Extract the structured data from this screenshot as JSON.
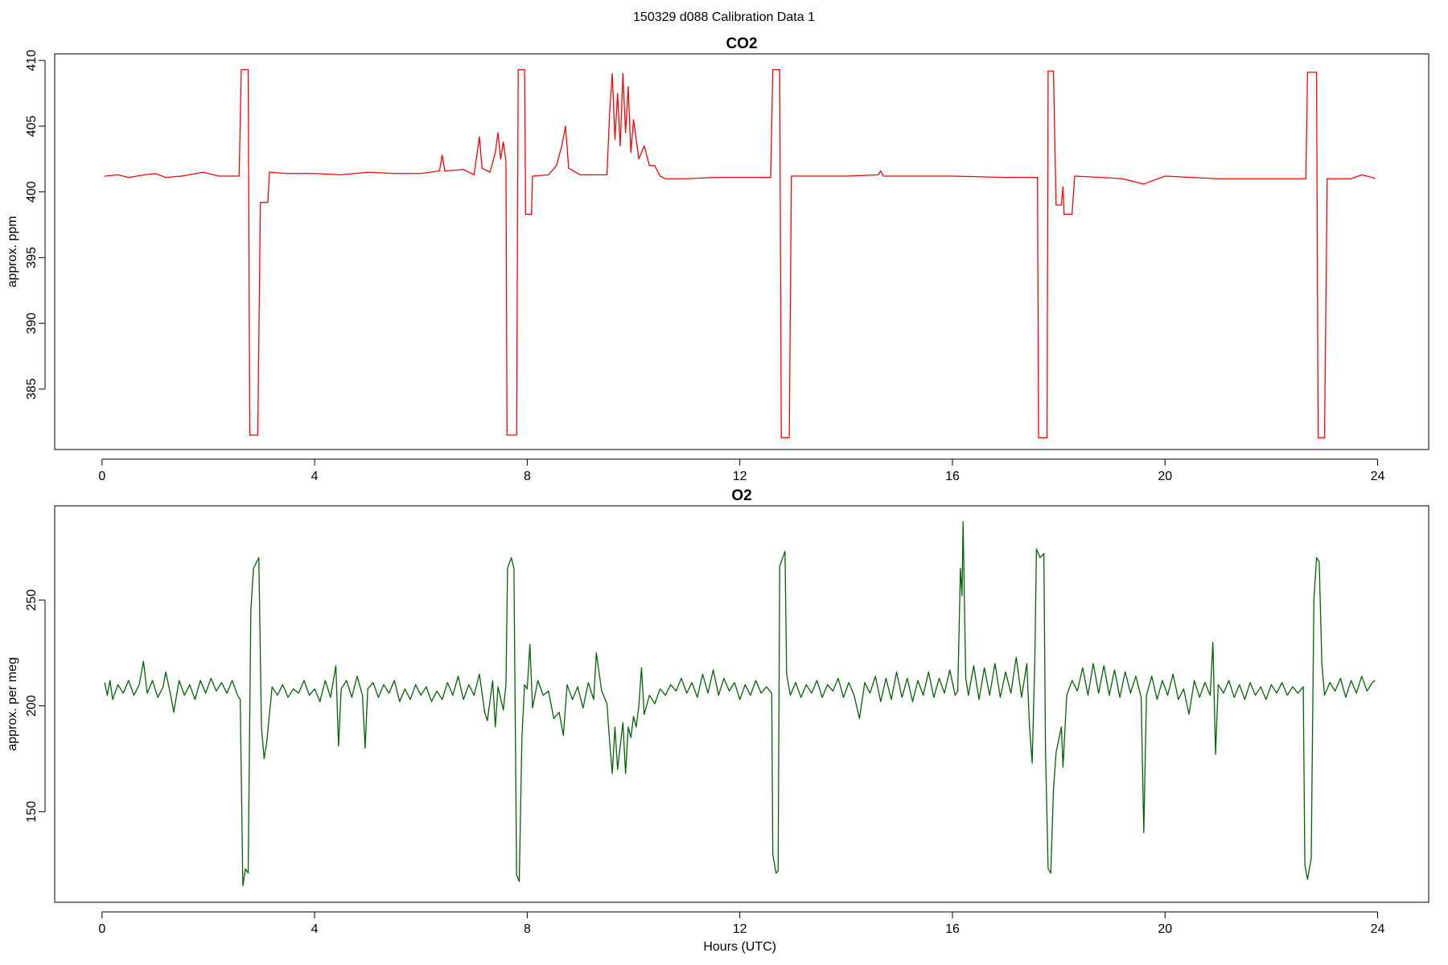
{
  "title": "150329   d088   Calibration Data 1",
  "chart_data": [
    {
      "type": "line",
      "title": "CO2",
      "ylabel": "approx. ppm",
      "color": "#ff0000",
      "xlim": [
        -0.89,
        24.96
      ],
      "ylim": [
        380.4,
        410.5
      ],
      "xticks": [
        0,
        4,
        8,
        12,
        16,
        20,
        24
      ],
      "yticks": [
        385,
        390,
        395,
        400,
        405,
        410
      ],
      "x": [
        0.05,
        0.3,
        0.5,
        0.8,
        1.0,
        1.2,
        1.5,
        1.9,
        2.2,
        2.58,
        2.62,
        2.75,
        2.78,
        2.93,
        2.98,
        3.12,
        3.15,
        3.5,
        4.0,
        4.5,
        5.0,
        5.5,
        6.0,
        6.35,
        6.4,
        6.45,
        6.8,
        7.0,
        7.1,
        7.15,
        7.3,
        7.4,
        7.45,
        7.5,
        7.55,
        7.6,
        7.62,
        7.8,
        7.83,
        7.95,
        7.97,
        8.08,
        8.1,
        8.4,
        8.55,
        8.65,
        8.72,
        8.78,
        9.0,
        9.5,
        9.55,
        9.6,
        9.65,
        9.7,
        9.75,
        9.8,
        9.85,
        9.9,
        9.95,
        10.0,
        10.1,
        10.2,
        10.3,
        10.4,
        10.5,
        10.6,
        11.0,
        11.5,
        12.0,
        12.58,
        12.62,
        12.75,
        12.78,
        12.93,
        12.97,
        13.5,
        14.0,
        14.6,
        14.65,
        14.7,
        15.5,
        16.0,
        17.0,
        17.6,
        17.62,
        17.78,
        17.8,
        17.9,
        17.95,
        18.05,
        18.08,
        18.1,
        18.25,
        18.3,
        18.8,
        19.2,
        19.6,
        20.0,
        20.5,
        21.0,
        22.0,
        22.65,
        22.68,
        22.85,
        22.88,
        23.0,
        23.05,
        23.5,
        23.7,
        23.9,
        23.95
      ],
      "values": [
        401.2,
        401.3,
        401.1,
        401.3,
        401.4,
        401.1,
        401.2,
        401.5,
        401.2,
        401.2,
        409.3,
        409.3,
        381.5,
        381.5,
        399.2,
        399.2,
        401.5,
        401.4,
        401.4,
        401.3,
        401.5,
        401.4,
        401.4,
        401.6,
        402.8,
        401.6,
        401.7,
        401.3,
        404.2,
        401.8,
        401.5,
        403.0,
        404.5,
        402.5,
        403.8,
        402.3,
        381.5,
        381.5,
        409.3,
        409.3,
        398.3,
        398.3,
        401.2,
        401.3,
        402.0,
        403.5,
        405.0,
        401.8,
        401.3,
        401.3,
        406.0,
        409.0,
        404.0,
        407.5,
        403.5,
        409.0,
        404.5,
        408.0,
        403.0,
        405.5,
        402.5,
        403.5,
        402.0,
        402.0,
        401.2,
        401.0,
        401.0,
        401.1,
        401.1,
        401.1,
        409.3,
        409.3,
        381.3,
        381.3,
        401.2,
        401.2,
        401.2,
        401.3,
        401.6,
        401.2,
        401.2,
        401.2,
        401.1,
        401.1,
        381.3,
        381.3,
        409.2,
        409.2,
        399.0,
        399.0,
        400.4,
        398.3,
        398.3,
        401.2,
        401.1,
        401.0,
        400.6,
        401.2,
        401.1,
        401.0,
        401.0,
        401.0,
        409.1,
        409.1,
        381.3,
        381.3,
        401.0,
        401.0,
        401.3,
        401.1,
        401.0
      ]
    },
    {
      "type": "line",
      "title": "O2",
      "ylabel": "approx. per meg",
      "xlabel": "Hours (UTC)",
      "color": "#006400",
      "xlim": [
        -0.89,
        24.96
      ],
      "ylim": [
        107.2,
        294.5
      ],
      "xticks": [
        0,
        4,
        8,
        12,
        16,
        20,
        24
      ],
      "yticks": [
        150,
        200,
        250
      ],
      "x": [
        0.05,
        0.1,
        0.15,
        0.2,
        0.3,
        0.4,
        0.5,
        0.6,
        0.7,
        0.78,
        0.85,
        0.95,
        1.05,
        1.15,
        1.2,
        1.3,
        1.35,
        1.45,
        1.55,
        1.65,
        1.75,
        1.85,
        1.95,
        2.05,
        2.15,
        2.25,
        2.35,
        2.45,
        2.55,
        2.6,
        2.65,
        2.7,
        2.75,
        2.8,
        2.85,
        2.95,
        3.0,
        3.05,
        3.1,
        3.2,
        3.3,
        3.4,
        3.5,
        3.6,
        3.7,
        3.8,
        3.9,
        4.0,
        4.1,
        4.2,
        4.3,
        4.4,
        4.45,
        4.5,
        4.6,
        4.7,
        4.8,
        4.9,
        4.95,
        5.0,
        5.1,
        5.2,
        5.3,
        5.4,
        5.5,
        5.6,
        5.7,
        5.8,
        5.9,
        6.0,
        6.1,
        6.2,
        6.3,
        6.4,
        6.5,
        6.6,
        6.7,
        6.8,
        6.9,
        7.0,
        7.1,
        7.2,
        7.25,
        7.35,
        7.4,
        7.45,
        7.55,
        7.6,
        7.63,
        7.7,
        7.75,
        7.8,
        7.85,
        7.9,
        7.95,
        8.0,
        8.05,
        8.1,
        8.2,
        8.3,
        8.4,
        8.5,
        8.6,
        8.68,
        8.75,
        8.85,
        8.95,
        9.05,
        9.15,
        9.25,
        9.3,
        9.4,
        9.5,
        9.55,
        9.6,
        9.65,
        9.7,
        9.8,
        9.85,
        9.9,
        9.95,
        10.0,
        10.05,
        10.1,
        10.15,
        10.2,
        10.3,
        10.4,
        10.5,
        10.6,
        10.7,
        10.8,
        10.9,
        11.0,
        11.1,
        11.2,
        11.3,
        11.4,
        11.5,
        11.6,
        11.7,
        11.8,
        11.9,
        12.0,
        12.1,
        12.2,
        12.3,
        12.4,
        12.5,
        12.6,
        12.62,
        12.68,
        12.72,
        12.75,
        12.85,
        12.88,
        12.95,
        13.05,
        13.15,
        13.25,
        13.35,
        13.45,
        13.55,
        13.65,
        13.75,
        13.85,
        13.95,
        14.05,
        14.15,
        14.25,
        14.35,
        14.45,
        14.55,
        14.65,
        14.75,
        14.85,
        14.95,
        15.05,
        15.15,
        15.25,
        15.35,
        15.45,
        15.55,
        15.65,
        15.75,
        15.85,
        15.95,
        16.05,
        16.1,
        16.15,
        16.18,
        16.2,
        16.25,
        16.3,
        16.4,
        16.5,
        16.6,
        16.7,
        16.8,
        16.9,
        17.0,
        17.1,
        17.2,
        17.3,
        17.4,
        17.45,
        17.5,
        17.55,
        17.58,
        17.65,
        17.72,
        17.75,
        17.8,
        17.85,
        17.9,
        17.95,
        18.05,
        18.08,
        18.15,
        18.25,
        18.35,
        18.45,
        18.55,
        18.65,
        18.75,
        18.85,
        18.95,
        19.05,
        19.15,
        19.25,
        19.35,
        19.45,
        19.55,
        19.6,
        19.65,
        19.75,
        19.85,
        19.95,
        20.05,
        20.15,
        20.25,
        20.35,
        20.45,
        20.55,
        20.65,
        20.75,
        20.85,
        20.9,
        20.95,
        21.0,
        21.1,
        21.2,
        21.3,
        21.4,
        21.5,
        21.6,
        21.7,
        21.8,
        21.9,
        22.0,
        22.1,
        22.2,
        22.3,
        22.4,
        22.5,
        22.6,
        22.63,
        22.68,
        22.75,
        22.8,
        22.85,
        22.9,
        22.95,
        23.0,
        23.1,
        23.2,
        23.3,
        23.4,
        23.5,
        23.6,
        23.7,
        23.8,
        23.9,
        23.95
      ],
      "values": [
        211,
        205,
        212,
        203,
        210,
        206,
        212,
        205,
        210,
        221,
        206,
        212,
        204,
        209,
        216,
        204,
        197,
        212,
        205,
        210,
        203,
        212,
        206,
        213,
        207,
        211,
        206,
        212,
        205,
        203,
        115,
        123,
        121,
        245,
        265,
        270,
        190,
        175,
        183,
        209,
        205,
        210,
        204,
        208,
        206,
        212,
        205,
        208,
        202,
        212,
        204,
        219,
        181,
        208,
        212,
        204,
        214,
        205,
        180,
        208,
        211,
        204,
        210,
        206,
        212,
        202,
        208,
        203,
        210,
        205,
        209,
        202,
        207,
        203,
        211,
        205,
        214,
        203,
        210,
        205,
        215,
        197,
        193,
        212,
        190,
        209,
        198,
        210,
        265,
        270,
        265,
        120,
        117,
        185,
        210,
        208,
        229,
        199,
        212,
        205,
        207,
        194,
        197,
        186,
        210,
        203,
        209,
        199,
        211,
        203,
        225,
        207,
        201,
        183,
        168,
        190,
        170,
        192,
        168,
        190,
        185,
        195,
        190,
        200,
        218,
        196,
        205,
        201,
        208,
        205,
        210,
        207,
        213,
        206,
        211,
        204,
        215,
        206,
        217,
        205,
        213,
        207,
        211,
        203,
        210,
        205,
        212,
        206,
        209,
        206,
        130,
        121,
        122,
        266,
        273,
        215,
        205,
        211,
        204,
        210,
        206,
        212,
        204,
        210,
        207,
        213,
        204,
        211,
        205,
        194,
        211,
        206,
        214,
        202,
        213,
        203,
        216,
        204,
        213,
        202,
        212,
        205,
        216,
        204,
        213,
        206,
        217,
        205,
        207,
        265,
        252,
        287,
        213,
        205,
        219,
        203,
        218,
        205,
        220,
        204,
        216,
        206,
        223,
        204,
        220,
        190,
        173,
        222,
        274,
        270,
        272,
        180,
        123,
        121,
        160,
        178,
        190,
        171,
        205,
        212,
        207,
        218,
        205,
        220,
        206,
        219,
        205,
        217,
        204,
        216,
        206,
        214,
        204,
        140,
        205,
        214,
        203,
        212,
        205,
        215,
        203,
        208,
        196,
        212,
        204,
        211,
        205,
        230,
        177,
        210,
        206,
        212,
        204,
        210,
        203,
        211,
        205,
        209,
        203,
        210,
        206,
        211,
        205,
        209,
        206,
        209,
        125,
        118,
        128,
        250,
        270,
        268,
        220,
        205,
        211,
        207,
        213,
        204,
        212,
        206,
        214,
        207,
        211,
        212
      ]
    }
  ]
}
